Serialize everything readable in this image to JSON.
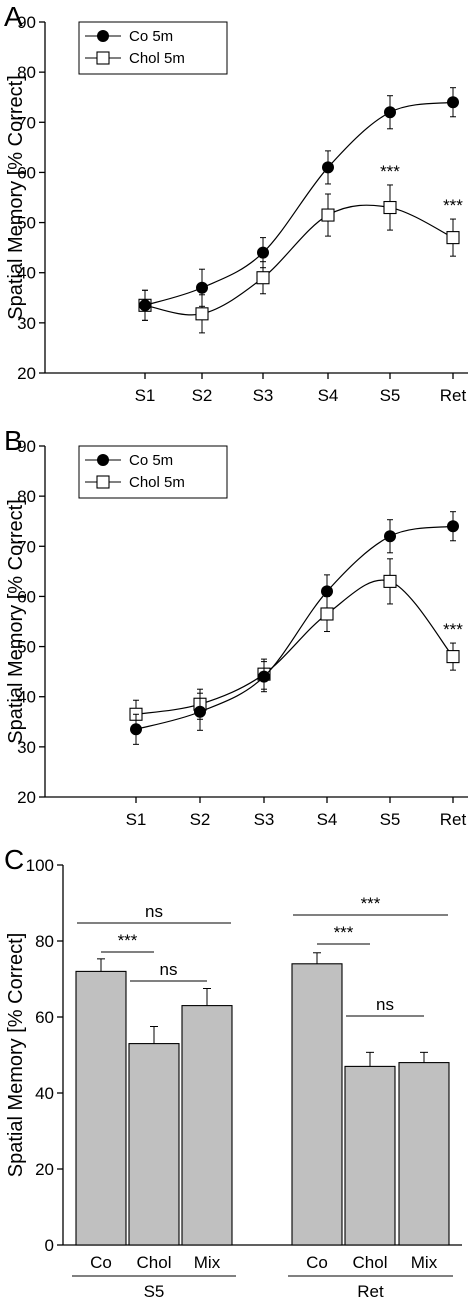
{
  "chart_data": [
    {
      "panel": "A",
      "type": "line",
      "ylabel": "Spatial Memory [% Correct]",
      "ylim": [
        20,
        90
      ],
      "yticks": [
        20,
        30,
        40,
        50,
        60,
        70,
        80,
        90
      ],
      "categories": [
        "S1",
        "S2",
        "S3",
        "S4",
        "S5",
        "Ret"
      ],
      "legend_position": "top-left",
      "series": [
        {
          "name": "Co 5m",
          "marker": "filled-circle",
          "values": [
            33.5,
            37,
            44,
            61,
            72,
            74
          ],
          "errors": [
            3,
            3.7,
            3,
            3.3,
            3.3,
            2.9
          ]
        },
        {
          "name": "Chol 5m",
          "marker": "open-square",
          "values": [
            33.5,
            31.8,
            39,
            51.5,
            53,
            47
          ],
          "errors": [
            3,
            3.8,
            3.2,
            4.2,
            4.5,
            3.7
          ]
        }
      ],
      "annotations": [
        {
          "category": "S5",
          "text": "***"
        },
        {
          "category": "Ret",
          "text": "***"
        }
      ]
    },
    {
      "panel": "B",
      "type": "line",
      "ylabel": "Spatial Memory [% Correct]",
      "ylim": [
        20,
        90
      ],
      "yticks": [
        20,
        30,
        40,
        50,
        60,
        70,
        80,
        90
      ],
      "categories": [
        "S1",
        "S2",
        "S3",
        "S4",
        "S5",
        "Ret"
      ],
      "legend_position": "top-left",
      "series": [
        {
          "name": "Co 5m",
          "marker": "filled-circle",
          "values": [
            33.5,
            37,
            44,
            61,
            72,
            74
          ],
          "errors": [
            3,
            3.7,
            3,
            3.3,
            3.3,
            2.9
          ]
        },
        {
          "name": "Chol 5m",
          "marker": "open-square",
          "values": [
            36.5,
            38.5,
            44.5,
            56.5,
            63,
            48
          ],
          "errors": [
            2.8,
            3,
            3,
            3.5,
            4.5,
            2.7
          ]
        }
      ],
      "annotations": [
        {
          "category": "Ret",
          "text": "***"
        }
      ]
    },
    {
      "panel": "C",
      "type": "bar",
      "ylabel": "Spatial Memory [% Correct]",
      "ylim": [
        0,
        100
      ],
      "yticks": [
        0,
        20,
        40,
        60,
        80,
        100
      ],
      "bar_color": "#c0c0c0",
      "groups": [
        {
          "name": "S5",
          "categories": [
            "Co",
            "Chol",
            "Mix"
          ],
          "values": [
            72,
            53,
            63
          ],
          "errors": [
            3.3,
            4.5,
            4.5
          ]
        },
        {
          "name": "Ret",
          "categories": [
            "Co",
            "Chol",
            "Mix"
          ],
          "values": [
            74,
            47,
            48
          ],
          "errors": [
            2.9,
            3.7,
            2.7
          ]
        }
      ],
      "comparisons": [
        {
          "group": "S5",
          "from": "Co",
          "to": "Mix",
          "text": "ns"
        },
        {
          "group": "S5",
          "from": "Co",
          "to": "Chol",
          "text": "***"
        },
        {
          "group": "S5",
          "from": "Chol",
          "to": "Mix",
          "text": "ns"
        },
        {
          "group": "Ret",
          "from": "Co",
          "to": "Mix",
          "text": "***"
        },
        {
          "group": "Ret",
          "from": "Co",
          "to": "Chol",
          "text": "***"
        },
        {
          "group": "Ret",
          "from": "Chol",
          "to": "Mix",
          "text": "ns"
        }
      ]
    }
  ]
}
